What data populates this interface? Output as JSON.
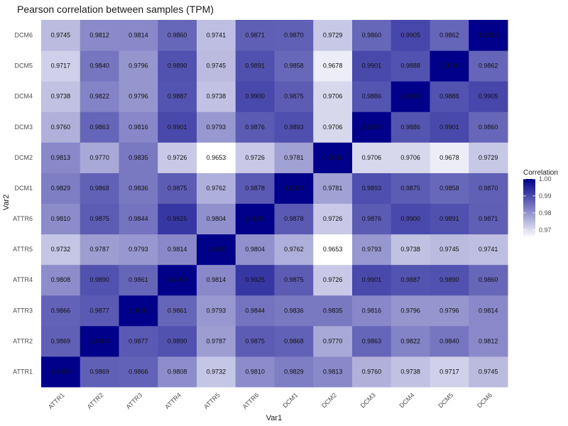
{
  "chart_data": {
    "type": "heatmap",
    "title": "Pearson correlation between samples (TPM)",
    "xlabel": "Var1",
    "ylabel": "Var2",
    "x_categories": [
      "ATTR1",
      "ATTR2",
      "ATTR3",
      "ATTR4",
      "ATTR5",
      "ATTR6",
      "DCM1",
      "DCM2",
      "DCM3",
      "DCM4",
      "DCM5",
      "DCM6"
    ],
    "y_categories": [
      "ATTR1",
      "ATTR2",
      "ATTR3",
      "ATTR4",
      "ATTR5",
      "ATTR6",
      "DCM1",
      "DCM2",
      "DCM3",
      "DCM4",
      "DCM5",
      "DCM6"
    ],
    "values": [
      [
        "1.0000",
        "0.9869",
        "0.9866",
        "0.9808",
        "0.9732",
        "0.9810",
        "0.9829",
        "0.9813",
        "0.9760",
        "0.9738",
        "0.9717",
        "0.9745"
      ],
      [
        "0.9869",
        "1.0000",
        "0.9877",
        "0.9890",
        "0.9787",
        "0.9875",
        "0.9868",
        "0.9770",
        "0.9863",
        "0.9822",
        "0.9840",
        "0.9812"
      ],
      [
        "0.9866",
        "0.9877",
        "1.0000",
        "0.9861",
        "0.9793",
        "0.9844",
        "0.9836",
        "0.9835",
        "0.9816",
        "0.9796",
        "0.9796",
        "0.9814"
      ],
      [
        "0.9808",
        "0.9890",
        "0.9861",
        "1.0000",
        "0.9814",
        "0.9925",
        "0.9875",
        "0.9726",
        "0.9901",
        "0.9887",
        "0.9890",
        "0.9860"
      ],
      [
        "0.9732",
        "0.9787",
        "0.9793",
        "0.9814",
        "1.0000",
        "0.9804",
        "0.9762",
        "0.9653",
        "0.9793",
        "0.9738",
        "0.9745",
        "0.9741"
      ],
      [
        "0.9810",
        "0.9875",
        "0.9844",
        "0.9925",
        "0.9804",
        "1.0000",
        "0.9878",
        "0.9726",
        "0.9876",
        "0.9900",
        "0.9891",
        "0.9871"
      ],
      [
        "0.9829",
        "0.9868",
        "0.9836",
        "0.9875",
        "0.9762",
        "0.9878",
        "1.0000",
        "0.9781",
        "0.9893",
        "0.9875",
        "0.9858",
        "0.9870"
      ],
      [
        "0.9813",
        "0.9770",
        "0.9835",
        "0.9726",
        "0.9653",
        "0.9726",
        "0.9781",
        "1.0000",
        "0.9706",
        "0.9706",
        "0.9678",
        "0.9729"
      ],
      [
        "0.9760",
        "0.9863",
        "0.9816",
        "0.9901",
        "0.9793",
        "0.9876",
        "0.9893",
        "0.9706",
        "1.0000",
        "0.9886",
        "0.9901",
        "0.9860"
      ],
      [
        "0.9738",
        "0.9822",
        "0.9796",
        "0.9887",
        "0.9738",
        "0.9900",
        "0.9875",
        "0.9706",
        "0.9886",
        "1.0000",
        "0.9888",
        "0.9905"
      ],
      [
        "0.9717",
        "0.9840",
        "0.9796",
        "0.9890",
        "0.9745",
        "0.9891",
        "0.9858",
        "0.9678",
        "0.9901",
        "0.9888",
        "1.0000",
        "0.9862"
      ],
      [
        "0.9745",
        "0.9812",
        "0.9814",
        "0.9860",
        "0.9741",
        "0.9871",
        "0.9870",
        "0.9729",
        "0.9860",
        "0.9905",
        "0.9862",
        "1.0000"
      ]
    ],
    "legend": {
      "title": "Correlation",
      "ticks": [
        "1.00",
        "0.99",
        "0.98",
        "0.97"
      ],
      "tick_values": [
        1.0,
        0.99,
        0.98,
        0.97
      ],
      "range": [
        0.9653,
        1.0
      ],
      "low_color": "#ffffff",
      "high_color": "#00008b"
    }
  }
}
